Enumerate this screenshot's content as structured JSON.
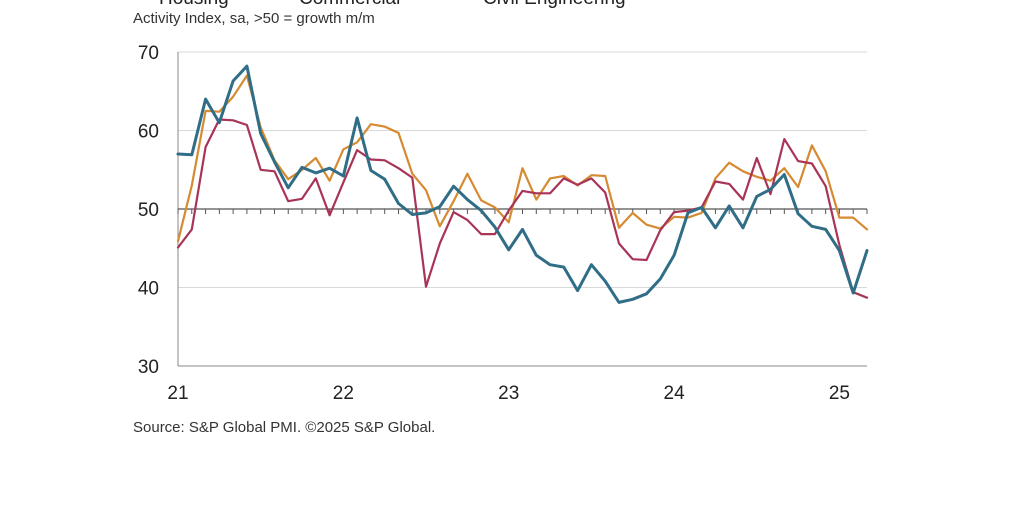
{
  "legend": [
    "Housing",
    "Commercial",
    "Civil Engineering"
  ],
  "subtitle": "Activity Index, sa, >50 = growth m/m",
  "source": "Source: S&P Global PMI. ©2025 S&P Global.",
  "chart_data": {
    "type": "line",
    "ylabel": "Activity Index, sa, >50 = growth m/m",
    "ylim": [
      30,
      70
    ],
    "yticks": [
      30,
      40,
      50,
      60,
      70
    ],
    "xticks": [
      "21",
      "22",
      "23",
      "24",
      "25"
    ],
    "x_start": "Jan 2021",
    "x_end": "Mar 2025",
    "months": 51,
    "grid": true,
    "reference_line": 50,
    "series": [
      {
        "name": "Housing",
        "color": "#2f6e86",
        "values": [
          57.0,
          56.9,
          64.0,
          61.0,
          66.3,
          68.2,
          59.6,
          56.0,
          52.7,
          55.3,
          54.6,
          55.2,
          54.2,
          61.6,
          54.9,
          53.8,
          50.7,
          49.3,
          49.5,
          50.3,
          52.9,
          51.2,
          49.8,
          47.7,
          44.8,
          47.4,
          44.1,
          42.9,
          42.6,
          39.6,
          42.9,
          40.8,
          38.1,
          38.5,
          39.2,
          41.1,
          44.1,
          49.5,
          50.2,
          47.6,
          50.4,
          47.6,
          51.6,
          52.5,
          54.4,
          49.4,
          47.8,
          47.4,
          44.7,
          39.3,
          44.7
        ]
      },
      {
        "name": "Commercial",
        "color": "#d68a32",
        "values": [
          45.9,
          53.0,
          62.5,
          62.4,
          64.3,
          67.0,
          60.4,
          56.2,
          53.8,
          55.0,
          56.5,
          53.6,
          57.6,
          58.5,
          60.8,
          60.5,
          59.7,
          54.5,
          52.4,
          47.8,
          51.0,
          54.5,
          51.1,
          50.2,
          48.3,
          55.2,
          51.2,
          53.9,
          54.2,
          53.0,
          54.3,
          54.2,
          47.6,
          49.5,
          48.0,
          47.5,
          49.0,
          48.9,
          49.5,
          53.9,
          55.9,
          54.8,
          54.1,
          53.6,
          55.2,
          52.8,
          58.1,
          54.8,
          48.9,
          48.9,
          47.4
        ]
      },
      {
        "name": "Civil Engineering",
        "color": "#a83456",
        "values": [
          45.1,
          47.4,
          57.9,
          61.4,
          61.3,
          60.7,
          55.0,
          54.8,
          51.0,
          51.3,
          53.9,
          49.2,
          53.4,
          57.5,
          56.3,
          56.2,
          55.2,
          54.0,
          40.1,
          45.6,
          49.6,
          48.6,
          46.8,
          46.8,
          49.8,
          52.3,
          52.0,
          52.0,
          53.9,
          53.1,
          53.9,
          52.1,
          45.6,
          43.6,
          43.5,
          47.3,
          49.6,
          49.8,
          50.2,
          53.5,
          53.2,
          51.2,
          56.5,
          51.9,
          58.9,
          56.1,
          55.8,
          52.9,
          45.4,
          39.4,
          38.7
        ]
      }
    ]
  }
}
